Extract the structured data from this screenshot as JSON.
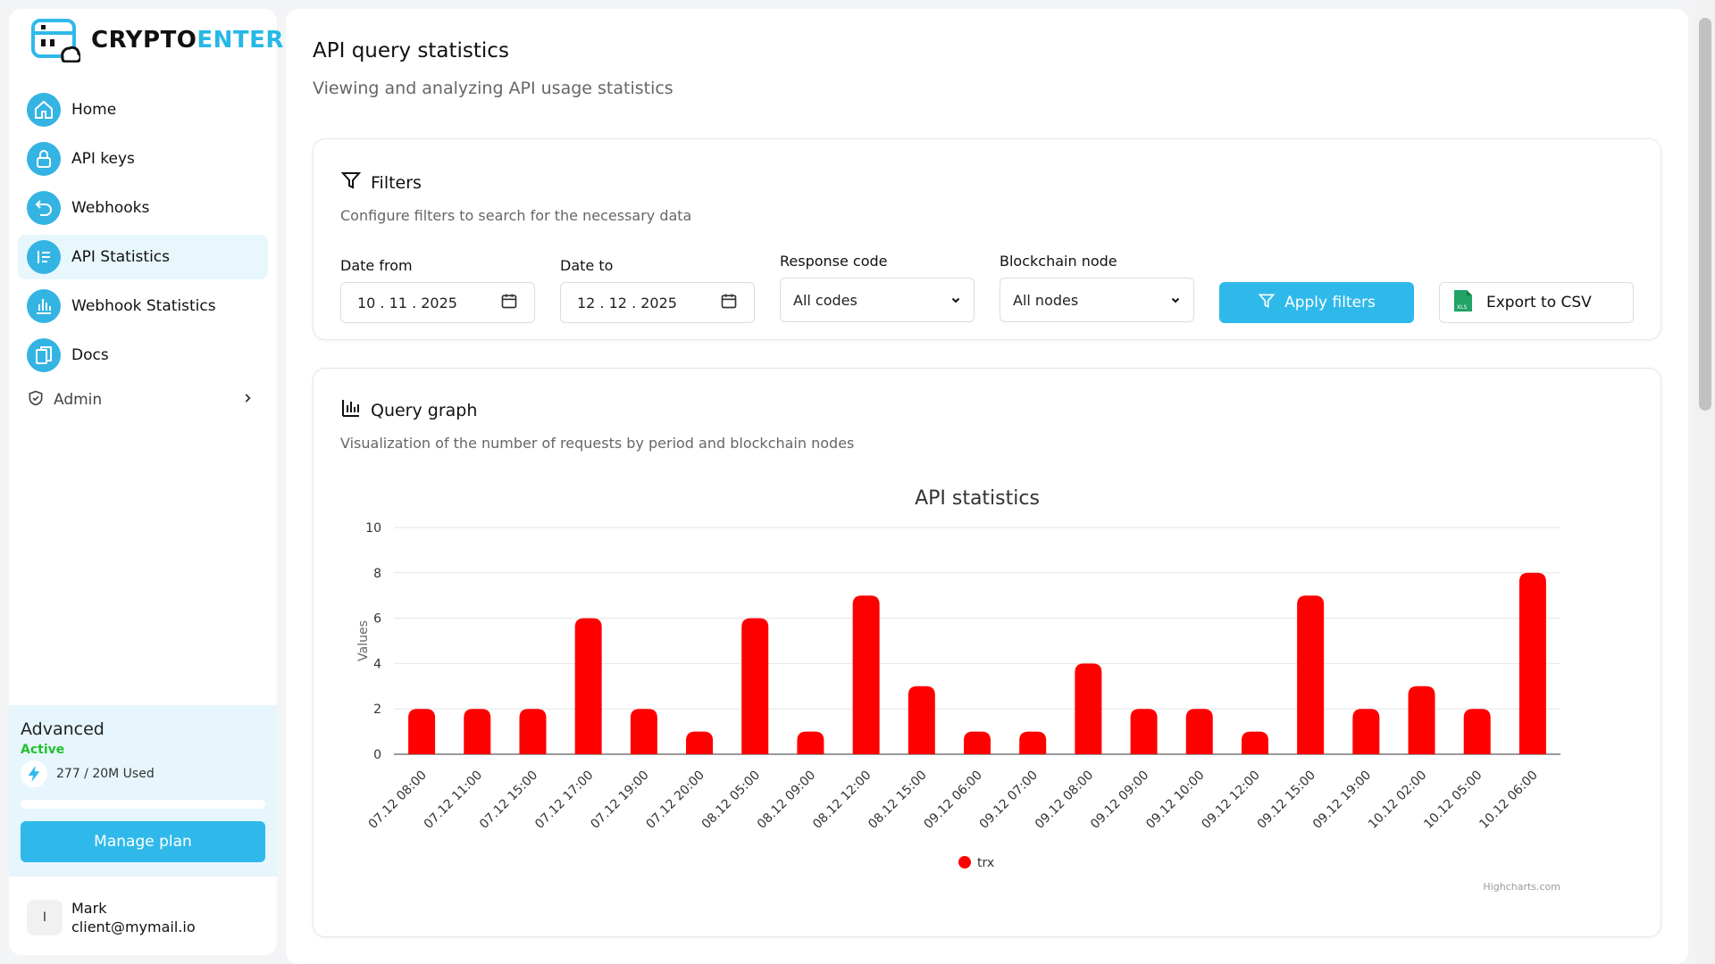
{
  "brand": {
    "name_part1": "CRYPTO",
    "name_part2": "ENTER"
  },
  "sidebar": {
    "items": [
      {
        "label": "Home",
        "icon": "home-icon"
      },
      {
        "label": "API keys",
        "icon": "lock-icon"
      },
      {
        "label": "Webhooks",
        "icon": "undo-arrow-icon"
      },
      {
        "label": "API Statistics",
        "icon": "list-icon"
      },
      {
        "label": "Webhook Statistics",
        "icon": "bar-chart-icon"
      },
      {
        "label": "Docs",
        "icon": "documents-icon"
      }
    ],
    "active_index": 3,
    "admin_label": "Admin"
  },
  "plan": {
    "name": "Advanced",
    "status": "Active",
    "usage": "277 / 20M Used",
    "usage_fraction": 1.39e-05,
    "manage_label": "Manage plan"
  },
  "user": {
    "initial": "I",
    "name": "Mark",
    "email": "client@mymail.io"
  },
  "page": {
    "title": "API query statistics",
    "subtitle": "Viewing and analyzing API usage statistics"
  },
  "filters": {
    "title": "Filters",
    "subtitle": "Configure filters to search for the necessary data",
    "date_from_label": "Date from",
    "date_from_value": "10 . 11 . 2025",
    "date_to_label": "Date to",
    "date_to_value": "12 . 12 . 2025",
    "response_code_label": "Response code",
    "response_code_value": "All codes",
    "node_label": "Blockchain node",
    "node_value": "All nodes",
    "apply_label": "Apply filters",
    "export_label": "Export to CSV"
  },
  "graph": {
    "title": "Query graph",
    "subtitle": "Visualization of the number of requests by period and blockchain nodes",
    "credit": "Highcharts.com"
  },
  "colors": {
    "accent": "#2fb9ea",
    "series": "#ff0000"
  },
  "chart_data": {
    "type": "bar",
    "title": "API statistics",
    "xlabel": "",
    "ylabel": "Values",
    "ylim": [
      0,
      10
    ],
    "yticks": [
      0,
      2,
      4,
      6,
      8,
      10
    ],
    "grid": true,
    "legend": "bottom-center",
    "categories": [
      "07.12 08:00",
      "07.12 11:00",
      "07.12 15:00",
      "07.12 17:00",
      "07.12 19:00",
      "07.12 20:00",
      "08.12 05:00",
      "08.12 09:00",
      "08.12 12:00",
      "08.12 15:00",
      "09.12 06:00",
      "09.12 07:00",
      "09.12 08:00",
      "09.12 09:00",
      "09.12 10:00",
      "09.12 12:00",
      "09.12 15:00",
      "09.12 19:00",
      "10.12 02:00",
      "10.12 05:00",
      "10.12 06:00"
    ],
    "series": [
      {
        "name": "trx",
        "values": [
          2,
          2,
          2,
          6,
          2,
          1,
          6,
          1,
          7,
          3,
          1,
          1,
          4,
          2,
          2,
          1,
          7,
          2,
          3,
          2,
          8
        ]
      }
    ]
  }
}
